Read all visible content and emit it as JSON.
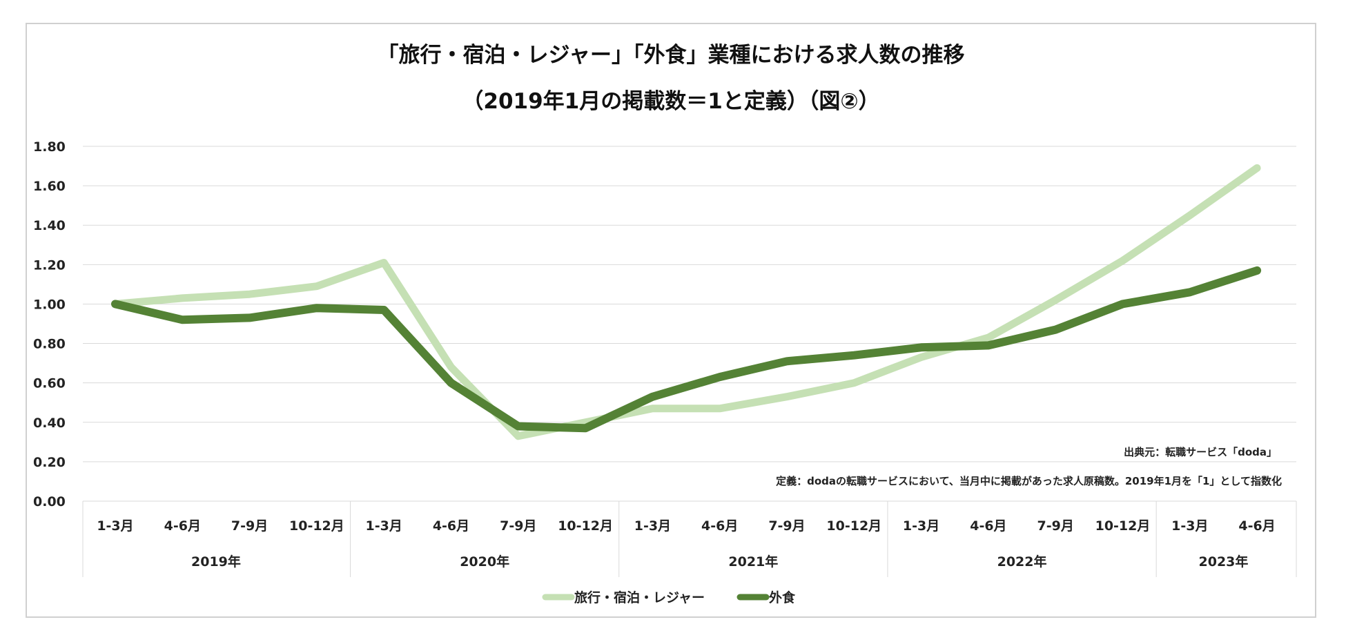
{
  "chart_data": {
    "type": "line",
    "title": "「旅行・宿泊・レジャー」「外食」業種における求人数の推移",
    "subtitle": "（2019年1月の掲載数＝1と定義）（図②）",
    "categories": [
      "1-3月",
      "4-6月",
      "7-9月",
      "10-12月",
      "1-3月",
      "4-6月",
      "7-9月",
      "10-12月",
      "1-3月",
      "4-6月",
      "7-9月",
      "10-12月",
      "1-3月",
      "4-6月",
      "7-9月",
      "10-12月",
      "1-3月",
      "4-6月"
    ],
    "groups": [
      {
        "label": "2019年",
        "count": 4
      },
      {
        "label": "2020年",
        "count": 4
      },
      {
        "label": "2021年",
        "count": 4
      },
      {
        "label": "2022年",
        "count": 4
      },
      {
        "label": "2023年",
        "count": 2
      }
    ],
    "ylim": [
      0,
      1.8
    ],
    "yticks": [
      "0.00",
      "0.20",
      "0.40",
      "0.60",
      "0.80",
      "1.00",
      "1.20",
      "1.40",
      "1.60",
      "1.80"
    ],
    "grid": true,
    "legend_position": "bottom",
    "series": [
      {
        "name": "旅行・宿泊・レジャー",
        "color": "#c5e0b4",
        "values": [
          1.0,
          1.03,
          1.05,
          1.09,
          1.21,
          0.68,
          0.33,
          0.4,
          0.47,
          0.47,
          0.53,
          0.6,
          0.73,
          0.83,
          1.02,
          1.22,
          1.45,
          1.69
        ]
      },
      {
        "name": "外食",
        "color": "#548235",
        "values": [
          1.0,
          0.92,
          0.93,
          0.98,
          0.97,
          0.6,
          0.38,
          0.37,
          0.53,
          0.63,
          0.71,
          0.74,
          0.78,
          0.79,
          0.87,
          1.0,
          1.06,
          1.17
        ]
      }
    ],
    "annotations": [
      "出典元：転職サービス「doda」",
      "定義：dodaの転職サービスにおいて、当月中に掲載があった求人原稿数。2019年1月を「1」として指数化"
    ]
  }
}
